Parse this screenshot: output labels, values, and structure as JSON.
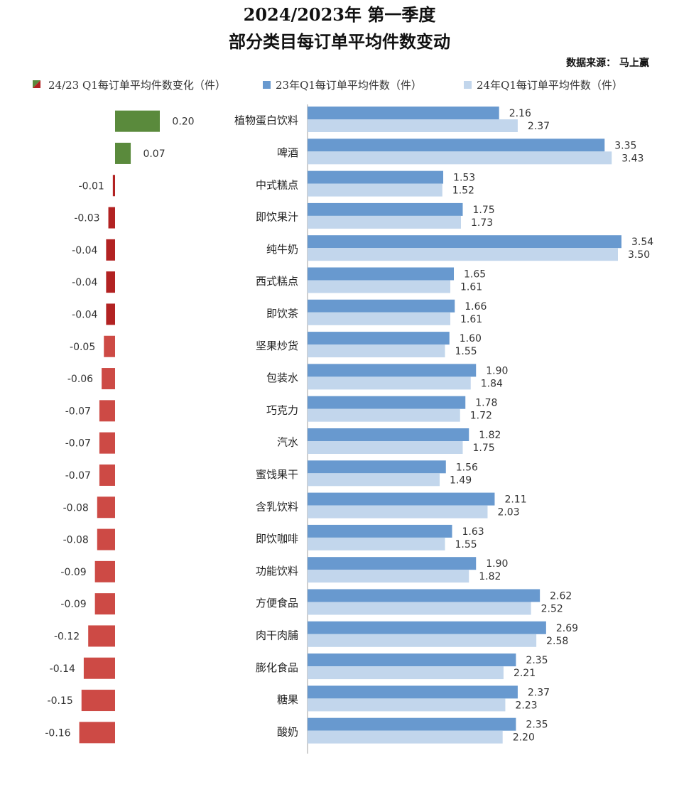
{
  "title_line1": "2024/2023年 第一季度",
  "title_line2": "部分类目每订单平均件数变动",
  "source": "数据来源： 马上赢",
  "legend": {
    "change": "24/23 Q1每订单平均件数变化（件）",
    "y23": "23年Q1每订单平均件数（件）",
    "y24": "24年Q1每订单平均件数（件）"
  },
  "colors": {
    "positive": "#5a8a3c",
    "negative_small": "#b22222",
    "negative": "#cd4a45",
    "y23": "#6899cf",
    "y24": "#c2d6ec",
    "axis": "#bfbfbf"
  },
  "chart_data": {
    "type": "bar",
    "orientation": "horizontal",
    "categories": [
      "植物蛋白饮料",
      "啤酒",
      "中式糕点",
      "即饮果汁",
      "纯牛奶",
      "西式糕点",
      "即饮茶",
      "坚果炒货",
      "包装水",
      "巧克力",
      "汽水",
      "蜜饯果干",
      "含乳饮料",
      "即饮咖啡",
      "功能饮料",
      "方便食品",
      "肉干肉脯",
      "膨化食品",
      "糖果",
      "酸奶"
    ],
    "change": {
      "name": "24/23 Q1每订单平均件数变化（件）",
      "values": [
        0.2,
        0.07,
        -0.01,
        -0.03,
        -0.04,
        -0.04,
        -0.04,
        -0.05,
        -0.06,
        -0.07,
        -0.07,
        -0.07,
        -0.08,
        -0.08,
        -0.09,
        -0.09,
        -0.12,
        -0.14,
        -0.15,
        -0.16
      ]
    },
    "series": [
      {
        "name": "23年Q1每订单平均件数（件）",
        "values": [
          2.16,
          3.35,
          1.53,
          1.75,
          3.54,
          1.65,
          1.66,
          1.6,
          1.9,
          1.78,
          1.82,
          1.56,
          2.11,
          1.63,
          1.9,
          2.62,
          2.69,
          2.35,
          2.37,
          2.35
        ]
      },
      {
        "name": "24年Q1每订单平均件数（件）",
        "values": [
          2.37,
          3.43,
          1.52,
          1.73,
          3.5,
          1.61,
          1.61,
          1.55,
          1.84,
          1.72,
          1.75,
          1.49,
          2.03,
          1.55,
          1.82,
          2.52,
          2.58,
          2.21,
          2.23,
          2.2
        ]
      }
    ],
    "legend_position": "top",
    "grid": false
  }
}
